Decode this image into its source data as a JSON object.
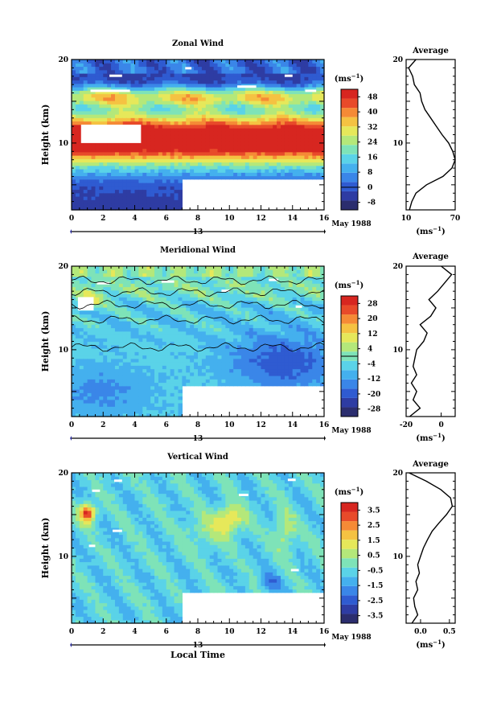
{
  "chart_data": [
    {
      "type": "heatmap",
      "title": "Zonal Wind",
      "xlabel": "",
      "ylabel": "Height (km)",
      "x_ticks": [
        "0",
        "2",
        "4",
        "6",
        "8",
        "10",
        "12",
        "14",
        "16"
      ],
      "y_ticks": [
        "10",
        "20"
      ],
      "xlim": [
        0,
        16
      ],
      "ylim": [
        2,
        20
      ],
      "date_marker": "13",
      "date_label": "May 1988",
      "colorbar": {
        "unit_base": "(ms",
        "unit_exp": "−1",
        "unit_close": ")",
        "ticks": [
          "48",
          "40",
          "32",
          "24",
          "16",
          "8",
          "0",
          "-8"
        ],
        "range": [
          -12,
          52
        ],
        "zero_line": 0
      },
      "average_profile": {
        "title": "Average",
        "xlabel_base": "(ms",
        "xlabel_exp": "−1",
        "xlabel_close": ")",
        "x_ticks": [
          "10",
          "70"
        ],
        "xlim": [
          10,
          70
        ],
        "y_ticks": [
          "10",
          "20"
        ],
        "heights_km": [
          2,
          3,
          4,
          5,
          6,
          7,
          8,
          9,
          10,
          11,
          12,
          13,
          14,
          15,
          16,
          17,
          18,
          19,
          20
        ],
        "values": [
          14,
          17,
          22,
          35,
          55,
          66,
          70,
          67,
          62,
          54,
          47,
          40,
          33,
          29,
          27,
          20,
          18,
          13,
          22
        ]
      }
    },
    {
      "type": "heatmap",
      "title": "Meridional Wind",
      "xlabel": "",
      "ylabel": "Height (km)",
      "x_ticks": [
        "0",
        "2",
        "4",
        "6",
        "8",
        "10",
        "12",
        "14",
        "16"
      ],
      "y_ticks": [
        "10",
        "20"
      ],
      "xlim": [
        0,
        16
      ],
      "ylim": [
        2,
        20
      ],
      "date_marker": "13",
      "date_label": "May 1988",
      "colorbar": {
        "unit_base": "(ms",
        "unit_exp": "−1",
        "unit_close": ")",
        "ticks": [
          "28",
          "20",
          "12",
          "4",
          "-4",
          "-12",
          "-20",
          "-28"
        ],
        "range": [
          -32,
          32
        ],
        "zero_line": 0
      },
      "average_profile": {
        "title": "Average",
        "xlabel_base": "(ms",
        "xlabel_exp": "−1",
        "xlabel_close": ")",
        "x_ticks": [
          "-20",
          "0"
        ],
        "xlim": [
          -20,
          8
        ],
        "y_ticks": [
          "10",
          "20"
        ],
        "heights_km": [
          2,
          3,
          4,
          5,
          6,
          7,
          8,
          9,
          10,
          11,
          12,
          13,
          14,
          15,
          16,
          17,
          18,
          19,
          20
        ],
        "values": [
          -18,
          -12,
          -16,
          -14,
          -17,
          -14,
          -16,
          -15,
          -14,
          -10,
          -8,
          -12,
          -6,
          -3,
          -7,
          -2,
          2,
          6,
          0
        ]
      }
    },
    {
      "type": "heatmap",
      "title": "Vertical Wind",
      "xlabel": "Local Time",
      "ylabel": "Height (km)",
      "x_ticks": [
        "0",
        "2",
        "4",
        "6",
        "8",
        "10",
        "12",
        "14",
        "16"
      ],
      "y_ticks": [
        "10",
        "20"
      ],
      "xlim": [
        0,
        16
      ],
      "ylim": [
        2,
        20
      ],
      "date_marker": "13",
      "date_label": "May 1988",
      "colorbar": {
        "unit_base": "(ms",
        "unit_exp": "−1",
        "unit_close": ")",
        "ticks": [
          "3.5",
          "2.5",
          "1.5",
          "0.5",
          "-0.5",
          "-1.5",
          "-2.5",
          "-3.5"
        ],
        "range": [
          -4,
          4
        ],
        "zero_line": null
      },
      "average_profile": {
        "title": "Average",
        "xlabel_base": "(ms",
        "xlabel_exp": "−1",
        "xlabel_close": ")",
        "x_ticks": [
          "0.0",
          "0.5"
        ],
        "xlim": [
          -0.25,
          0.6
        ],
        "y_ticks": [
          "10",
          "20"
        ],
        "heights_km": [
          2,
          3,
          4,
          5,
          6,
          7,
          8,
          9,
          10,
          11,
          12,
          13,
          14,
          15,
          16,
          17,
          18,
          19,
          20
        ],
        "values": [
          -0.15,
          -0.05,
          -0.1,
          -0.12,
          -0.05,
          -0.08,
          -0.02,
          -0.05,
          0.0,
          0.05,
          0.12,
          0.2,
          0.32,
          0.45,
          0.55,
          0.52,
          0.35,
          0.1,
          -0.2
        ]
      }
    }
  ]
}
